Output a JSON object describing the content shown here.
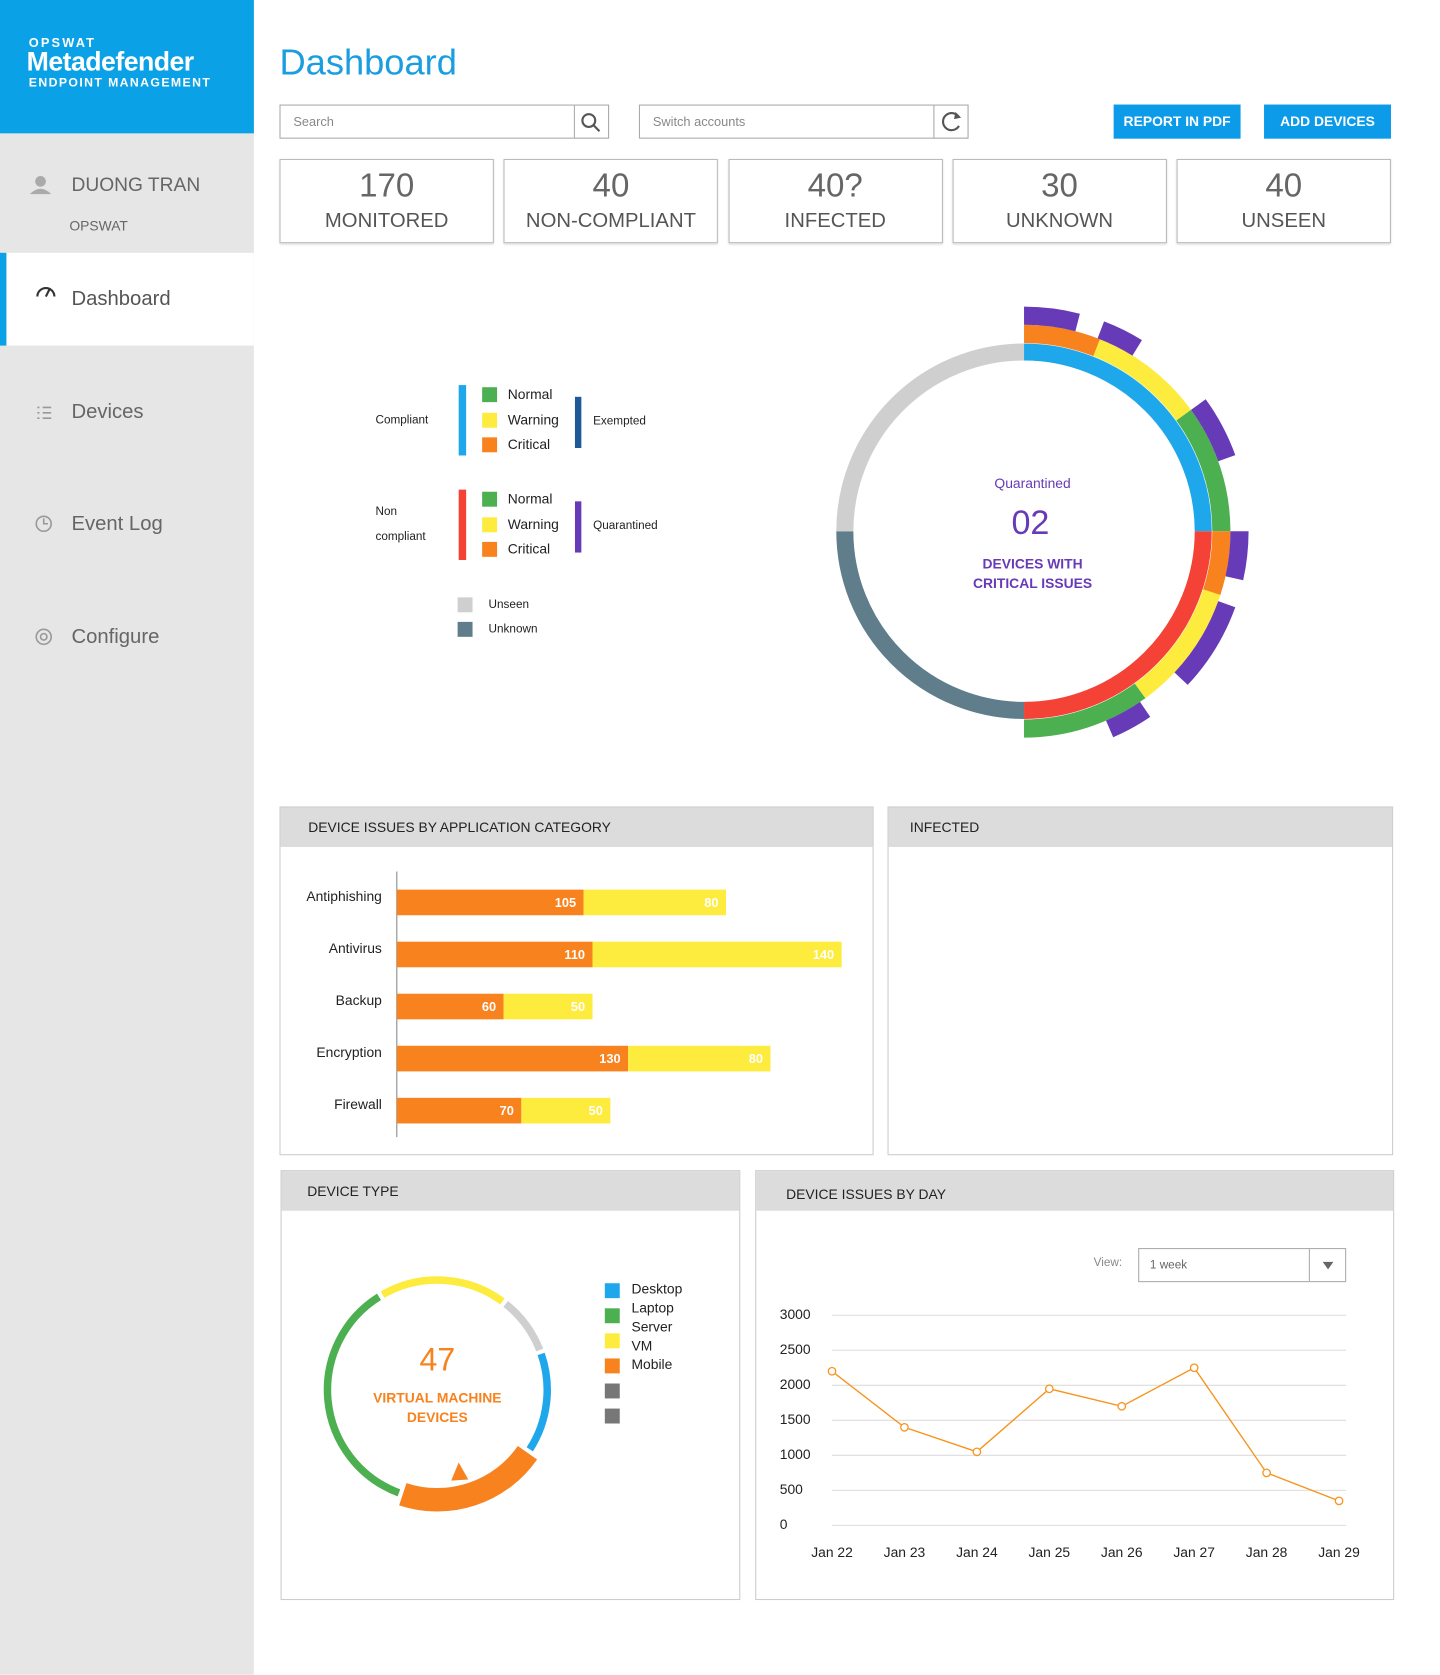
{
  "brand": {
    "company": "OPSWAT",
    "product": "Metadefender",
    "tagline": "ENDPOINT MANAGEMENT"
  },
  "user": {
    "name": "DUONG TRAN",
    "organization": "OPSWAT"
  },
  "nav": {
    "items": [
      "Dashboard",
      "Devices",
      "Event Log",
      "Configure"
    ],
    "active": 0
  },
  "header": {
    "title": "Dashboard",
    "search_placeholder": "Search",
    "accounts_placeholder": "Switch accounts",
    "buttons": [
      "REPORT IN PDF",
      "ADD DEVICES"
    ]
  },
  "stats": [
    {
      "value": 170,
      "label": "MONITORED"
    },
    {
      "value": 40,
      "label": "NON-COMPLIANT"
    },
    {
      "value": "40?",
      "label": "INFECTED"
    },
    {
      "value": 30,
      "label": "UNKNOWN"
    },
    {
      "value": 40,
      "label": "UNSEEN"
    }
  ],
  "status_chart": {
    "type": "radial",
    "legend": {
      "groups": [
        {
          "name": "Compliant",
          "color": "#1ea7ea",
          "items": [
            "Normal",
            "Warning",
            "Critical"
          ],
          "flag": "Exempted",
          "flag_color": "#1f5a96"
        },
        {
          "name": "Non compliant",
          "color": "#f44336",
          "items": [
            "Normal",
            "Warning",
            "Critical"
          ],
          "flag": "Quarantined",
          "flag_color": "#673ab7"
        }
      ],
      "item_colors": [
        "#4caf50",
        "#fdeb3d",
        "#f7821e"
      ],
      "others": [
        {
          "name": "Unseen",
          "color": "#cfcfcf"
        },
        {
          "name": "Unknown",
          "color": "#607d8b"
        }
      ]
    },
    "inner": [
      {
        "value": 25,
        "color": "#1ea7ea"
      },
      {
        "value": 25,
        "color": "#f44336"
      },
      {
        "value": 25,
        "color": "#607d8b"
      },
      {
        "value": 25,
        "color": "#cfcfcf"
      }
    ],
    "outer": [
      {
        "value": 6,
        "color": "#f7821e"
      },
      {
        "value": 9,
        "color": "#fdeb3d"
      },
      {
        "value": 10,
        "color": "#4caf50"
      },
      {
        "value": 5,
        "color": "#f7821e"
      },
      {
        "value": 10,
        "color": "#fdeb3d"
      },
      {
        "value": 10,
        "color": "#4caf50"
      }
    ],
    "flags": {
      "color": "#673ab7",
      "arcs": [
        {
          "start": 0,
          "extent": 4
        },
        {
          "start": 5.8,
          "extent": 3
        },
        {
          "start": 15,
          "extent": 4.5
        },
        {
          "start": 25,
          "extent": 3.5
        },
        {
          "start": 30.5,
          "extent": 6.5
        },
        {
          "start": 40.5,
          "extent": 3
        }
      ]
    },
    "center": {
      "label": "Quarantined",
      "value": "02",
      "caption": "DEVICES WITH CRITICAL ISSUES"
    }
  },
  "app_issues": {
    "type": "bar",
    "title": "DEVICE ISSUES BY APPLICATION CATEGORY",
    "categories": [
      "Antiphishing",
      "Antivirus",
      "Backup",
      "Encryption",
      "Firewall"
    ],
    "series": [
      {
        "color": "#f7821e",
        "values": [
          105,
          110,
          60,
          130,
          70
        ]
      },
      {
        "color": "#fdeb3d",
        "values": [
          80,
          140,
          50,
          80,
          50
        ]
      }
    ],
    "xlim": [
      0,
      250
    ]
  },
  "infected": {
    "title": "INFECTED"
  },
  "device_type": {
    "type": "donut",
    "title": "DEVICE TYPE",
    "legend": [
      {
        "name": "Desktop",
        "color": "#1ea7ea"
      },
      {
        "name": "Laptop",
        "color": "#4caf50"
      },
      {
        "name": "Server",
        "color": "#fdeb3d"
      },
      {
        "name": "VM",
        "color": "#f7821e"
      },
      {
        "name": "Mobile",
        "color": "#777777"
      },
      {
        "name": null,
        "color": "#777777"
      }
    ],
    "segments": [
      {
        "value": 19,
        "color": "#fdeb3d"
      },
      {
        "value": 9,
        "color": "#cfcfcf"
      },
      {
        "value": 15,
        "color": "#1ea7ea"
      },
      {
        "value": 21,
        "color": "#f7821e"
      },
      {
        "value": 36,
        "color": "#4caf50"
      }
    ],
    "center": {
      "value": 47,
      "caption": "VIRTUAL MACHINE DEVICES"
    }
  },
  "issues_by_day": {
    "type": "line",
    "title": "DEVICE ISSUES BY DAY",
    "view_label": "View:",
    "view_value": "1 week",
    "categories": [
      "Jan 22",
      "Jan 23",
      "Jan 24",
      "Jan 25",
      "Jan 26",
      "Jan 27",
      "Jan 28",
      "Jan 29"
    ],
    "values": [
      2200,
      1400,
      1050,
      1950,
      1700,
      2250,
      750,
      350
    ],
    "color": "#f7941d",
    "ylim": [
      0,
      3000
    ],
    "yticks": [
      0,
      500,
      1000,
      1500,
      2000,
      2500,
      3000
    ],
    "grid": true
  }
}
